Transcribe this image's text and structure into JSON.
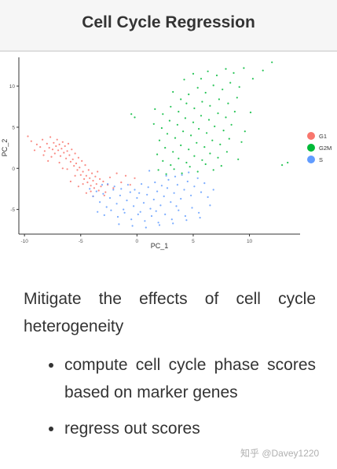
{
  "header": {
    "title": "Cell Cycle Regression"
  },
  "chart_data": {
    "type": "scatter",
    "xlabel": "PC_1",
    "ylabel": "PC_2",
    "xlim": [
      -10.5,
      14.5
    ],
    "ylim": [
      -8,
      13.5
    ],
    "x_ticks": [
      -10,
      -5,
      0,
      5,
      10
    ],
    "y_ticks": [
      -5,
      0,
      5,
      10
    ],
    "grid": false,
    "legend_position": "right",
    "series": [
      {
        "name": "G1",
        "color": "#f8766d",
        "points": [
          [
            -9.7,
            3.9
          ],
          [
            -9.4,
            3.3
          ],
          [
            -8.9,
            2.9
          ],
          [
            -8.6,
            2.6
          ],
          [
            -8.4,
            3.5
          ],
          [
            -8.2,
            2.1
          ],
          [
            -8.0,
            3.0
          ],
          [
            -7.8,
            2.5
          ],
          [
            -7.7,
            3.8
          ],
          [
            -7.5,
            2.3
          ],
          [
            -7.4,
            3.1
          ],
          [
            -7.3,
            1.8
          ],
          [
            -7.2,
            2.7
          ],
          [
            -7.1,
            3.5
          ],
          [
            -7.0,
            2.2
          ],
          [
            -6.9,
            2.9
          ],
          [
            -6.8,
            1.5
          ],
          [
            -6.7,
            2.4
          ],
          [
            -6.6,
            3.2
          ],
          [
            -6.5,
            1.9
          ],
          [
            -6.4,
            2.7
          ],
          [
            -6.3,
            1.2
          ],
          [
            -6.2,
            2.1
          ],
          [
            -6.1,
            3.0
          ],
          [
            -6.0,
            1.6
          ],
          [
            -5.9,
            0.8
          ],
          [
            -5.8,
            2.3
          ],
          [
            -5.7,
            1.1
          ],
          [
            -5.6,
            0.3
          ],
          [
            -5.5,
            1.8
          ],
          [
            -5.4,
            0.6
          ],
          [
            -5.3,
            -0.2
          ],
          [
            -5.2,
            1.3
          ],
          [
            -5.1,
            0.1
          ],
          [
            -5.0,
            -0.8
          ],
          [
            -4.9,
            0.9
          ],
          [
            -4.8,
            -0.4
          ],
          [
            -4.7,
            -1.3
          ],
          [
            -4.6,
            0.4
          ],
          [
            -4.5,
            -0.9
          ],
          [
            -4.4,
            -1.7
          ],
          [
            -4.3,
            -0.2
          ],
          [
            -4.2,
            -1.2
          ],
          [
            -4.1,
            -2.1
          ],
          [
            -4.0,
            -0.6
          ],
          [
            -3.9,
            -1.5
          ],
          [
            -3.8,
            -2.4
          ],
          [
            -3.7,
            -1.0
          ],
          [
            -3.6,
            -1.9
          ],
          [
            -3.5,
            -0.4
          ],
          [
            -3.4,
            -2.7
          ],
          [
            -3.3,
            -1.3
          ],
          [
            -3.2,
            -2.2
          ],
          [
            -3.0,
            -1.6
          ],
          [
            -2.8,
            -2.9
          ],
          [
            -2.6,
            -2.0
          ],
          [
            -2.4,
            -1.1
          ],
          [
            -2.1,
            -2.4
          ],
          [
            -1.8,
            -0.6
          ],
          [
            -1.4,
            -1.7
          ],
          [
            -1.0,
            -0.9
          ],
          [
            -0.6,
            -2.0
          ],
          [
            -0.2,
            -1.2
          ],
          [
            -7.6,
            1.4
          ],
          [
            -6.9,
            0.7
          ],
          [
            -6.2,
            -0.1
          ],
          [
            -5.5,
            -0.9
          ],
          [
            -4.8,
            -1.9
          ],
          [
            -4.1,
            -2.8
          ],
          [
            -8.3,
            1.6
          ],
          [
            -7.9,
            0.9
          ],
          [
            -3.9,
            -3.4
          ],
          [
            -5.9,
            -1.6
          ],
          [
            -2.9,
            -3.3
          ],
          [
            -4.5,
            -3.0
          ],
          [
            -9.1,
            2.2
          ],
          [
            -6.6,
            0.0
          ],
          [
            -5.2,
            -2.2
          ]
        ]
      },
      {
        "name": "G2M",
        "color": "#00ba38",
        "points": [
          [
            12.0,
            12.9
          ],
          [
            11.2,
            11.9
          ],
          [
            10.3,
            10.9
          ],
          [
            9.5,
            12.2
          ],
          [
            8.6,
            11.6
          ],
          [
            7.9,
            12.1
          ],
          [
            7.1,
            11.3
          ],
          [
            6.3,
            11.8
          ],
          [
            5.7,
            10.9
          ],
          [
            5.0,
            11.5
          ],
          [
            4.2,
            10.8
          ],
          [
            9.1,
            9.9
          ],
          [
            8.3,
            10.4
          ],
          [
            7.6,
            9.6
          ],
          [
            6.8,
            10.1
          ],
          [
            6.1,
            9.2
          ],
          [
            5.4,
            9.8
          ],
          [
            4.6,
            9.0
          ],
          [
            3.9,
            8.4
          ],
          [
            3.2,
            9.3
          ],
          [
            8.9,
            8.6
          ],
          [
            8.1,
            7.9
          ],
          [
            7.3,
            8.4
          ],
          [
            6.5,
            7.6
          ],
          [
            5.8,
            8.1
          ],
          [
            5.1,
            7.3
          ],
          [
            4.4,
            7.9
          ],
          [
            3.7,
            6.9
          ],
          [
            3.0,
            7.5
          ],
          [
            2.3,
            6.6
          ],
          [
            1.6,
            7.2
          ],
          [
            8.7,
            6.9
          ],
          [
            7.9,
            6.2
          ],
          [
            7.2,
            6.7
          ],
          [
            6.4,
            5.9
          ],
          [
            5.7,
            6.4
          ],
          [
            5.0,
            5.6
          ],
          [
            4.3,
            6.1
          ],
          [
            3.6,
            5.3
          ],
          [
            2.9,
            5.8
          ],
          [
            2.2,
            4.9
          ],
          [
            1.5,
            5.4
          ],
          [
            8.4,
            5.3
          ],
          [
            7.7,
            4.6
          ],
          [
            6.9,
            5.1
          ],
          [
            6.2,
            4.3
          ],
          [
            5.5,
            4.8
          ],
          [
            4.8,
            4.0
          ],
          [
            4.1,
            4.5
          ],
          [
            3.4,
            3.7
          ],
          [
            2.7,
            4.2
          ],
          [
            2.0,
            3.4
          ],
          [
            8.2,
            3.6
          ],
          [
            7.4,
            2.9
          ],
          [
            6.7,
            3.4
          ],
          [
            6.0,
            2.6
          ],
          [
            5.3,
            3.1
          ],
          [
            4.6,
            2.3
          ],
          [
            3.9,
            2.8
          ],
          [
            3.2,
            2.0
          ],
          [
            2.5,
            2.5
          ],
          [
            1.8,
            1.7
          ],
          [
            8.0,
            2.0
          ],
          [
            7.2,
            1.3
          ],
          [
            6.5,
            1.8
          ],
          [
            5.8,
            1.0
          ],
          [
            5.1,
            1.5
          ],
          [
            4.4,
            0.7
          ],
          [
            3.7,
            1.2
          ],
          [
            3.0,
            0.4
          ],
          [
            2.3,
            0.9
          ],
          [
            7.5,
            0.3
          ],
          [
            6.8,
            -0.2
          ],
          [
            6.1,
            0.5
          ],
          [
            5.4,
            -0.4
          ],
          [
            4.7,
            0.2
          ],
          [
            4.0,
            -0.6
          ],
          [
            3.3,
            -0.1
          ],
          [
            2.6,
            -0.7
          ],
          [
            1.9,
            -0.2
          ],
          [
            -0.5,
            6.6
          ],
          [
            -0.2,
            6.2
          ],
          [
            12.9,
            0.4
          ],
          [
            13.4,
            0.7
          ],
          [
            9.6,
            4.5
          ],
          [
            10.1,
            6.8
          ],
          [
            9.3,
            3.2
          ],
          [
            9.0,
            1.1
          ]
        ]
      },
      {
        "name": "S",
        "color": "#619cff",
        "points": [
          [
            -4.2,
            -2.5
          ],
          [
            -3.9,
            -3.4
          ],
          [
            -3.6,
            -2.8
          ],
          [
            -3.3,
            -4.1
          ],
          [
            -3.0,
            -3.1
          ],
          [
            -2.7,
            -4.7
          ],
          [
            -2.4,
            -3.6
          ],
          [
            -2.1,
            -2.6
          ],
          [
            -1.8,
            -4.3
          ],
          [
            -1.5,
            -3.3
          ],
          [
            -1.2,
            -5.0
          ],
          [
            -0.9,
            -3.9
          ],
          [
            -0.6,
            -2.9
          ],
          [
            -0.3,
            -4.6
          ],
          [
            0.0,
            -3.6
          ],
          [
            0.3,
            -5.3
          ],
          [
            0.6,
            -4.2
          ],
          [
            0.9,
            -3.2
          ],
          [
            1.2,
            -4.9
          ],
          [
            1.5,
            -3.8
          ],
          [
            1.8,
            -2.8
          ],
          [
            2.1,
            -4.5
          ],
          [
            2.4,
            -3.4
          ],
          [
            2.7,
            -2.4
          ],
          [
            3.0,
            -4.1
          ],
          [
            3.3,
            -3.0
          ],
          [
            3.6,
            -2.0
          ],
          [
            3.9,
            -3.7
          ],
          [
            4.2,
            -2.6
          ],
          [
            4.5,
            -1.6
          ],
          [
            4.8,
            -3.3
          ],
          [
            5.1,
            -2.2
          ],
          [
            5.4,
            -1.2
          ],
          [
            5.7,
            -2.9
          ],
          [
            6.0,
            -1.8
          ],
          [
            6.3,
            -3.5
          ],
          [
            -2.6,
            -1.9
          ],
          [
            -2.0,
            -2.2
          ],
          [
            -1.4,
            -2.5
          ],
          [
            -0.8,
            -2.0
          ],
          [
            -0.2,
            -2.6
          ],
          [
            0.4,
            -1.9
          ],
          [
            1.0,
            -2.3
          ],
          [
            1.6,
            -1.7
          ],
          [
            2.2,
            -2.1
          ],
          [
            2.8,
            -1.4
          ],
          [
            3.4,
            -1.0
          ],
          [
            4.0,
            -0.8
          ],
          [
            4.6,
            -0.5
          ],
          [
            -3.5,
            -5.3
          ],
          [
            -2.9,
            -5.7
          ],
          [
            -2.3,
            -5.1
          ],
          [
            -1.7,
            -5.9
          ],
          [
            -1.1,
            -5.4
          ],
          [
            -0.5,
            -6.2
          ],
          [
            0.1,
            -5.6
          ],
          [
            0.7,
            -6.4
          ],
          [
            1.3,
            -5.8
          ],
          [
            1.9,
            -6.6
          ],
          [
            2.5,
            -5.6
          ],
          [
            3.1,
            -6.2
          ],
          [
            3.7,
            -5.1
          ],
          [
            4.3,
            -5.8
          ],
          [
            4.9,
            -4.8
          ],
          [
            5.5,
            -5.4
          ],
          [
            -1.6,
            -6.8
          ],
          [
            -0.4,
            -7.0
          ],
          [
            0.8,
            -7.2
          ],
          [
            2.0,
            -6.9
          ],
          [
            3.2,
            -6.7
          ],
          [
            4.4,
            -6.3
          ],
          [
            5.6,
            -6.0
          ],
          [
            6.5,
            -4.5
          ],
          [
            6.8,
            -2.6
          ],
          [
            1.1,
            -0.3
          ],
          [
            2.6,
            -0.9
          ],
          [
            -3.1,
            -2.0
          ],
          [
            0.2,
            -3.0
          ],
          [
            1.7,
            -5.2
          ],
          [
            3.5,
            -4.6
          ]
        ]
      }
    ]
  },
  "content": {
    "intro": "Mitigate the effects of cell cycle heterogeneity",
    "bullets": [
      "compute cell cycle phase scores based on marker genes",
      "regress out scores"
    ]
  },
  "watermark": "知乎 @Davey1220"
}
